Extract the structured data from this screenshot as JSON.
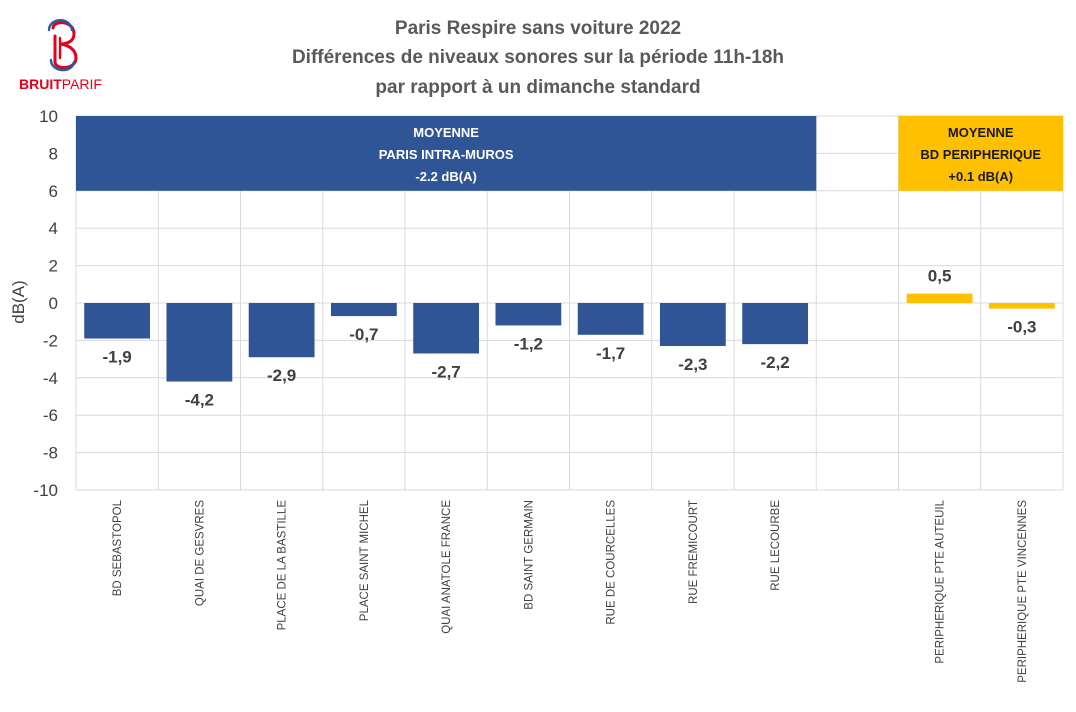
{
  "logo": {
    "text_bold": "BRUIT",
    "text_light": "PARIF",
    "color_red": "#e2001a",
    "color_blue": "#1f5fa8"
  },
  "chart_data": {
    "type": "bar",
    "title": [
      "Paris Respire sans voiture 2022",
      "Différences de niveaux sonores sur la période 11h-18h",
      "par rapport à un dimanche standard"
    ],
    "ylabel": "dB(A)",
    "ylim": [
      -10,
      10
    ],
    "yticks": [
      10,
      8,
      6,
      4,
      2,
      0,
      -2,
      -4,
      -6,
      -8,
      -10
    ],
    "grid": true,
    "categories": [
      "BD SEBASTOPOL",
      "QUAI DE GESVRES",
      "PLACE DE LA BASTILLE",
      "PLACE SAINT MICHEL",
      "QUAI ANATOLE FRANCE",
      "BD SAINT GERMAIN",
      "RUE DE COURCELLES",
      "RUE FREMICOURT",
      "RUE LECOURBE",
      "",
      "PERIPHERIQUE PTE AUTEUIL",
      "PERIPHERIQUE PTE VINCENNES"
    ],
    "values": [
      -1.9,
      -4.2,
      -2.9,
      -0.7,
      -2.7,
      -1.2,
      -1.7,
      -2.3,
      -2.2,
      null,
      0.5,
      -0.3
    ],
    "labels": [
      "-1,9",
      "-4,2",
      "-2,9",
      "-0,7",
      "-2,7",
      "-1,2",
      "-1,7",
      "-2,3",
      "-2,2",
      "",
      "0,5",
      "-0,3"
    ],
    "colors": [
      "#2f5597",
      "#2f5597",
      "#2f5597",
      "#2f5597",
      "#2f5597",
      "#2f5597",
      "#2f5597",
      "#2f5597",
      "#2f5597",
      "",
      "#ffc000",
      "#ffc000"
    ],
    "bands": [
      {
        "lines": [
          "MOYENNE",
          "PARIS INTRA-MUROS",
          "-2.2 dB(A)"
        ],
        "from_category": 0,
        "to_category": 8,
        "y_from": 6,
        "y_to": 10,
        "color": "#2f5597",
        "text_color": "#ffffff"
      },
      {
        "lines": [
          "MOYENNE",
          "BD PERIPHERIQUE",
          "+0.1 dB(A)"
        ],
        "from_category": 10,
        "to_category": 11,
        "y_from": 6,
        "y_to": 10,
        "color": "#ffc000",
        "text_color": "#1a1a1a"
      }
    ]
  }
}
